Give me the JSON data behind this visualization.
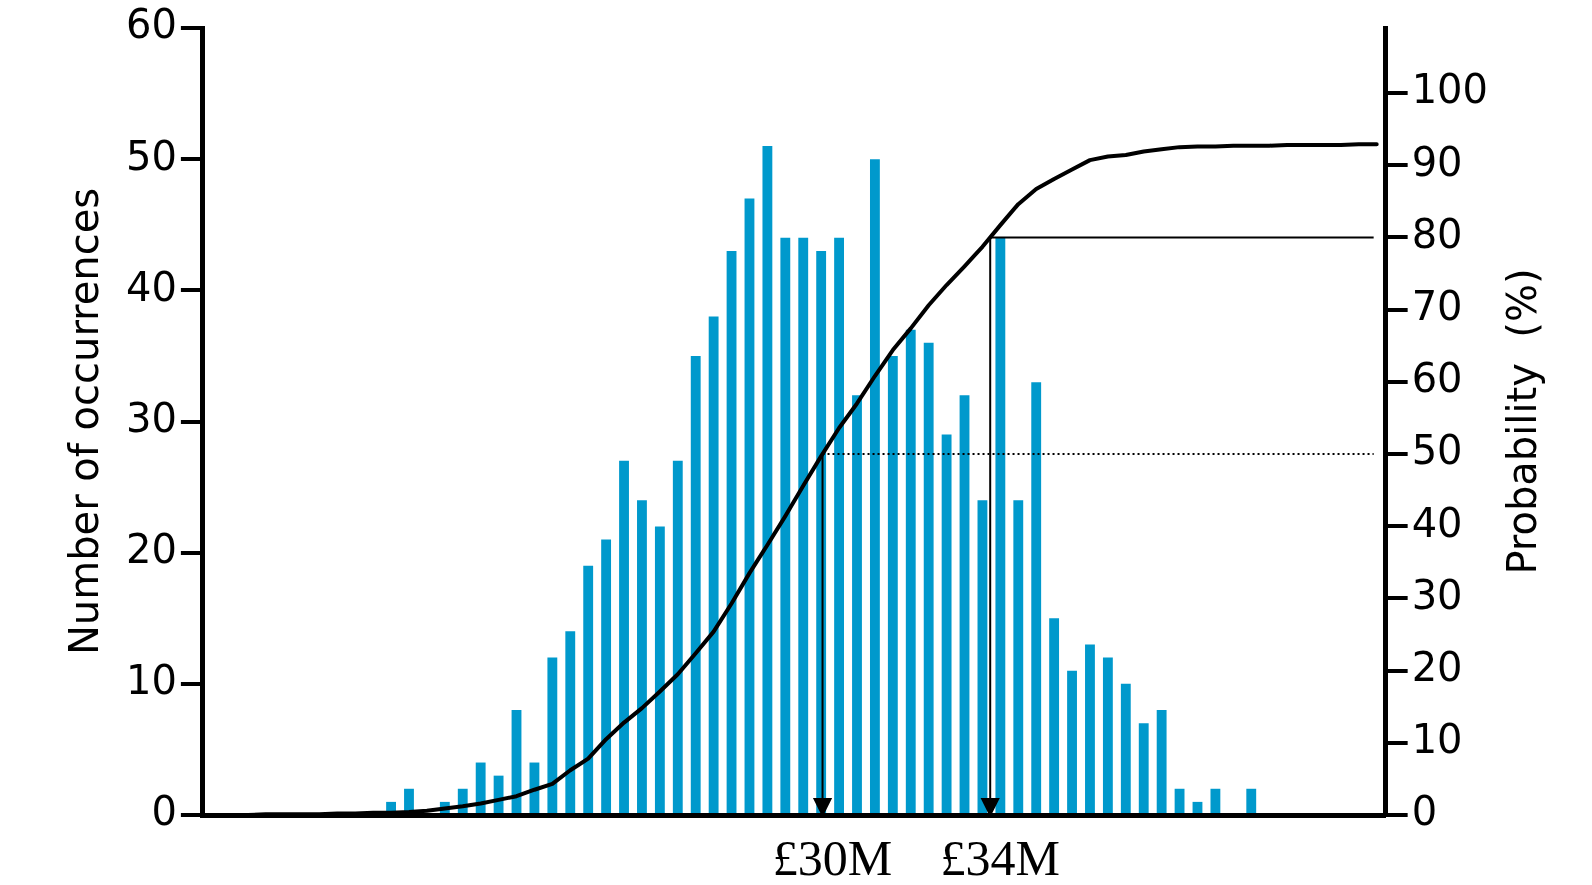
{
  "chart_data": {
    "type": "bar",
    "ylabel": "Number of occurrences",
    "y2label": "Probability  (%)",
    "categories": [
      null,
      null,
      null,
      null,
      null,
      null,
      null,
      null,
      null,
      null,
      null,
      null,
      null,
      null,
      null,
      null,
      null,
      null,
      null,
      null,
      null,
      null,
      null,
      null,
      null,
      null,
      null,
      null,
      null,
      null,
      null,
      null,
      null,
      null,
      null,
      null,
      null,
      null,
      null,
      null,
      null,
      null,
      null,
      null,
      null,
      null,
      null,
      null,
      null,
      null,
      null,
      null,
      null,
      null,
      null,
      null,
      null,
      null,
      null,
      null,
      null,
      null,
      null,
      null,
      null,
      null
    ],
    "series": [
      {
        "color": "#0099cc",
        "values": [
          null,
          null,
          null,
          null,
          null,
          null,
          null,
          null,
          null,
          null,
          1,
          2,
          0,
          1,
          2,
          4,
          3,
          8,
          4,
          12,
          14,
          19,
          21,
          27,
          24,
          22,
          27,
          35,
          38,
          43,
          47,
          51,
          44,
          44,
          43,
          44,
          32,
          50,
          35,
          37,
          36,
          29,
          32,
          24,
          44,
          24,
          33,
          15,
          11,
          13,
          12,
          10,
          7,
          8,
          2,
          1,
          2,
          0,
          2,
          null,
          null,
          null,
          null,
          null,
          null,
          null
        ]
      },
      {
        "type": "line",
        "axis": "y2",
        "color": "#000000",
        "values": [
          0,
          0,
          0,
          0.1,
          0.1,
          0.1,
          0.1,
          0.2,
          0.2,
          0.3,
          0.3,
          0.4,
          0.6,
          0.9,
          1.2,
          1.6,
          2.1,
          2.6,
          3.5,
          4.3,
          6.2,
          7.8,
          10.5,
          12.8,
          14.8,
          17.1,
          19.5,
          22.4,
          25.4,
          29.3,
          33.5,
          37.4,
          41.4,
          45.6,
          49.7,
          53.6,
          57.0,
          60.8,
          64.4,
          67.4,
          70.6,
          73.4,
          76.0,
          78.7,
          81.7,
          84.6,
          86.7,
          88.1,
          89.4,
          90.7,
          91.2,
          91.4,
          91.9,
          92.2,
          92.5,
          92.6,
          92.6,
          92.7,
          92.7,
          92.7,
          92.8,
          92.8,
          92.8,
          92.8,
          92.9,
          92.9
        ]
      }
    ],
    "ylim": [
      0,
      60
    ],
    "yticks": [
      0,
      10,
      20,
      30,
      40,
      50,
      60
    ],
    "y2lim": [
      0,
      109
    ],
    "y2ticks": [
      0,
      10,
      20,
      30,
      40,
      50,
      60,
      70,
      80,
      90,
      100
    ],
    "ref_lines": [
      {
        "axis": "y2",
        "value": 50,
        "color": "#000000",
        "line_style": "dotted"
      },
      {
        "axis": "y2",
        "value": 80,
        "color": "#000000",
        "line_style": "solid"
      }
    ],
    "annotations": [
      "£30M",
      "£34M"
    ],
    "grid": false,
    "legend": false,
    "marker": "none"
  }
}
